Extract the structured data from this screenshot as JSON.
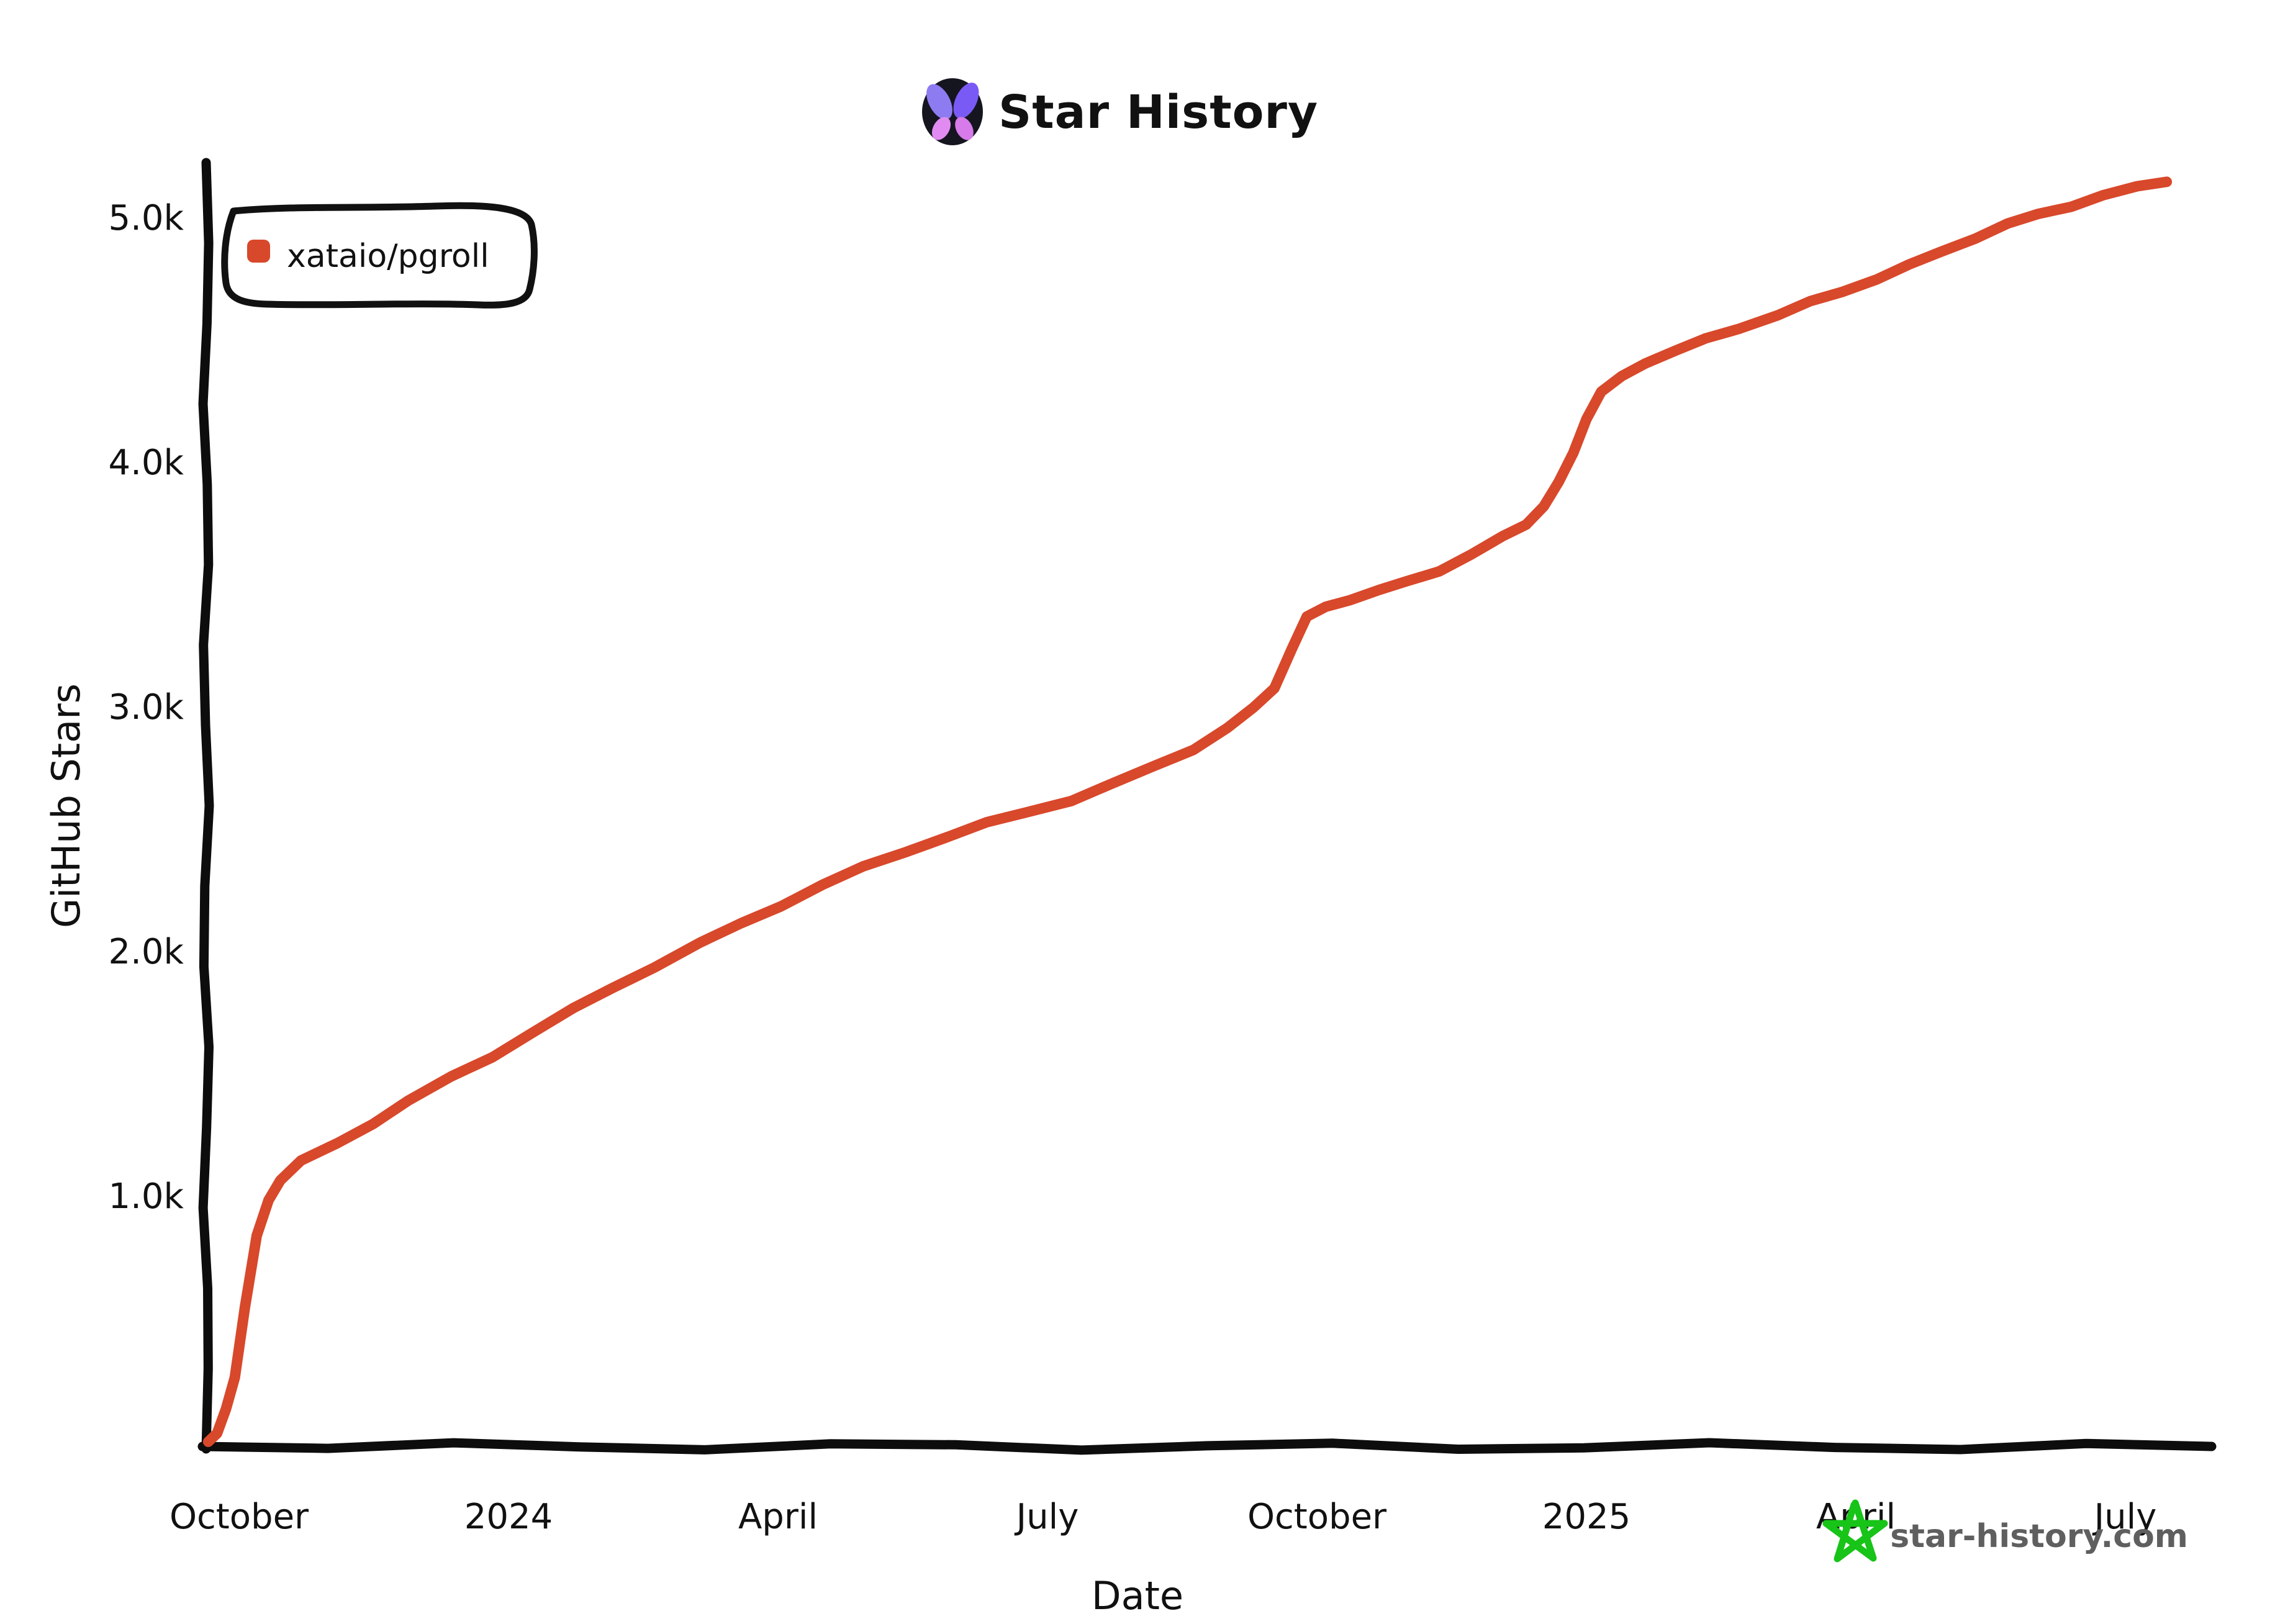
{
  "header": {
    "title": "Star History",
    "logo": "butterfly-icon"
  },
  "legend": {
    "items": [
      {
        "label": "xataio/pgroll",
        "color": "#d8482b",
        "marker": "rounded-square"
      }
    ]
  },
  "watermark": {
    "icon": "star-icon",
    "text": "star-history.com"
  },
  "colors": {
    "accent": "#d8482b",
    "axis": "#0d0d0d",
    "text": "#111111",
    "watermark_green": "#17c417",
    "watermark_gray": "#5f5f5f",
    "logo_bg": "#15151f",
    "logo_wing_upper_left": "#8d7bf2",
    "logo_wing_upper_right": "#7a5af5",
    "logo_wing_lower_left": "#e18bf2",
    "logo_wing_lower_right": "#d67be9"
  },
  "chart_data": {
    "type": "line",
    "title": "Star History",
    "xlabel": "Date",
    "ylabel": "GitHub Stars",
    "grid": false,
    "legend_position": "top-left",
    "style": "xkcd-hand-drawn",
    "x_axis": {
      "start": "2023-09-20",
      "end": "2025-07-25",
      "ticks": [
        {
          "label": "October",
          "date": "2023-10-01"
        },
        {
          "label": "2024",
          "date": "2024-01-01"
        },
        {
          "label": "April",
          "date": "2024-04-01"
        },
        {
          "label": "July",
          "date": "2024-07-01"
        },
        {
          "label": "October",
          "date": "2024-10-01"
        },
        {
          "label": "2025",
          "date": "2025-01-01"
        },
        {
          "label": "April",
          "date": "2025-04-01"
        },
        {
          "label": "July",
          "date": "2025-07-01"
        }
      ]
    },
    "y_axis": {
      "min": 0,
      "max": 5300,
      "ticks": [
        {
          "label": "1.0k",
          "value": 1000
        },
        {
          "label": "2.0k",
          "value": 2000
        },
        {
          "label": "3.0k",
          "value": 3000
        },
        {
          "label": "4.0k",
          "value": 4000
        },
        {
          "label": "5.0k",
          "value": 5000
        }
      ]
    },
    "series": [
      {
        "name": "xataio/pgroll",
        "color": "#d8482b",
        "points": [
          [
            "2023-09-21",
            0
          ],
          [
            "2023-09-24",
            30
          ],
          [
            "2023-09-27",
            120
          ],
          [
            "2023-09-30",
            260
          ],
          [
            "2023-10-03",
            550
          ],
          [
            "2023-10-07",
            830
          ],
          [
            "2023-10-11",
            980
          ],
          [
            "2023-10-15",
            1070
          ],
          [
            "2023-10-22",
            1140
          ],
          [
            "2023-11-04",
            1210
          ],
          [
            "2023-11-16",
            1300
          ],
          [
            "2023-11-28",
            1390
          ],
          [
            "2023-12-12",
            1480
          ],
          [
            "2023-12-26",
            1570
          ],
          [
            "2024-01-09",
            1670
          ],
          [
            "2024-01-23",
            1760
          ],
          [
            "2024-02-06",
            1850
          ],
          [
            "2024-02-20",
            1940
          ],
          [
            "2024-03-05",
            2030
          ],
          [
            "2024-03-19",
            2110
          ],
          [
            "2024-04-02",
            2190
          ],
          [
            "2024-04-16",
            2270
          ],
          [
            "2024-04-30",
            2340
          ],
          [
            "2024-05-14",
            2410
          ],
          [
            "2024-05-28",
            2470
          ],
          [
            "2024-06-11",
            2520
          ],
          [
            "2024-06-25",
            2570
          ],
          [
            "2024-07-09",
            2620
          ],
          [
            "2024-07-23",
            2680
          ],
          [
            "2024-08-06",
            2750
          ],
          [
            "2024-08-20",
            2830
          ],
          [
            "2024-09-01",
            2910
          ],
          [
            "2024-09-10",
            2990
          ],
          [
            "2024-09-17",
            3080
          ],
          [
            "2024-09-23",
            3240
          ],
          [
            "2024-09-28",
            3360
          ],
          [
            "2024-10-04",
            3410
          ],
          [
            "2024-10-12",
            3440
          ],
          [
            "2024-10-22",
            3470
          ],
          [
            "2024-11-01",
            3510
          ],
          [
            "2024-11-12",
            3560
          ],
          [
            "2024-11-23",
            3620
          ],
          [
            "2024-12-03",
            3690
          ],
          [
            "2024-12-11",
            3750
          ],
          [
            "2024-12-17",
            3820
          ],
          [
            "2024-12-22",
            3910
          ],
          [
            "2024-12-27",
            4040
          ],
          [
            "2025-01-01",
            4180
          ],
          [
            "2025-01-06",
            4280
          ],
          [
            "2025-01-13",
            4350
          ],
          [
            "2025-01-21",
            4410
          ],
          [
            "2025-01-31",
            4450
          ],
          [
            "2025-02-11",
            4500
          ],
          [
            "2025-02-22",
            4550
          ],
          [
            "2025-03-05",
            4600
          ],
          [
            "2025-03-16",
            4650
          ],
          [
            "2025-03-27",
            4700
          ],
          [
            "2025-04-08",
            4750
          ],
          [
            "2025-04-19",
            4800
          ],
          [
            "2025-04-30",
            4860
          ],
          [
            "2025-05-11",
            4920
          ],
          [
            "2025-05-22",
            4970
          ],
          [
            "2025-06-02",
            5010
          ],
          [
            "2025-06-13",
            5050
          ],
          [
            "2025-06-24",
            5090
          ],
          [
            "2025-07-05",
            5120
          ],
          [
            "2025-07-15",
            5150
          ]
        ]
      }
    ]
  }
}
